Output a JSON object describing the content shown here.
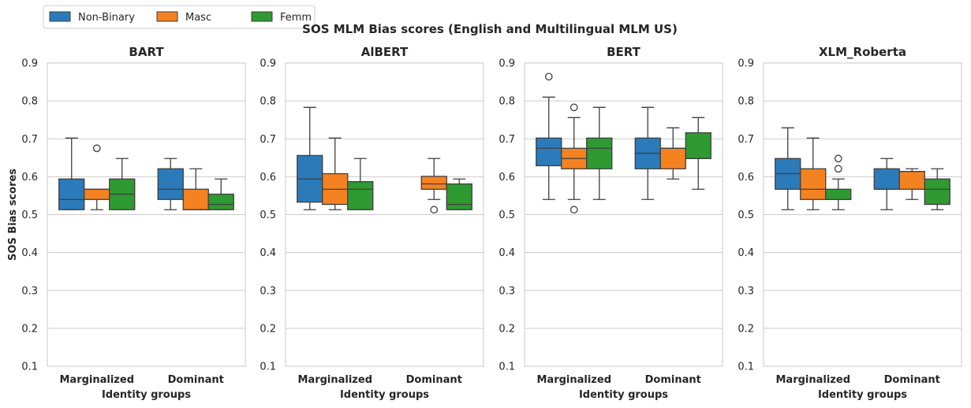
{
  "chart_data": {
    "type": "box",
    "title": "SOS MLM Bias scores (English and Multilingual MLM US)",
    "ylabel": "SOS Bias scores",
    "xlabel": "Identity groups",
    "ylim": [
      0.1,
      0.9
    ],
    "yticks": [
      "0.1",
      "0.2",
      "0.3",
      "0.4",
      "0.5",
      "0.6",
      "0.7",
      "0.8",
      "0.9"
    ],
    "categories": [
      "Marginalized",
      "Dominant"
    ],
    "grid": true,
    "legend": {
      "placement": "top-left",
      "entries": [
        {
          "name": "Non-Binary",
          "color": "#2b7bba"
        },
        {
          "name": "Masc",
          "color": "#f58220"
        },
        {
          "name": "Femm",
          "color": "#2e9a31"
        }
      ]
    },
    "panels": [
      {
        "title": "BART",
        "boxes": [
          {
            "category": "Marginalized",
            "series": "Non-Binary",
            "whislo": 0.513,
            "q1": 0.513,
            "med": 0.54,
            "q3": 0.594,
            "whishi": 0.702,
            "fliers": []
          },
          {
            "category": "Marginalized",
            "series": "Masc",
            "whislo": 0.513,
            "q1": 0.54,
            "med": 0.567,
            "q3": 0.567,
            "whishi": 0.567,
            "fliers": [
              0.675
            ]
          },
          {
            "category": "Marginalized",
            "series": "Femm",
            "whislo": 0.513,
            "q1": 0.513,
            "med": 0.554,
            "q3": 0.594,
            "whishi": 0.648,
            "fliers": []
          },
          {
            "category": "Dominant",
            "series": "Non-Binary",
            "whislo": 0.513,
            "q1": 0.54,
            "med": 0.567,
            "q3": 0.621,
            "whishi": 0.648,
            "fliers": []
          },
          {
            "category": "Dominant",
            "series": "Masc",
            "whislo": 0.513,
            "q1": 0.513,
            "med": 0.513,
            "q3": 0.567,
            "whishi": 0.621,
            "fliers": []
          },
          {
            "category": "Dominant",
            "series": "Femm",
            "whislo": 0.513,
            "q1": 0.513,
            "med": 0.527,
            "q3": 0.554,
            "whishi": 0.594,
            "fliers": []
          }
        ]
      },
      {
        "title": "AlBERT",
        "boxes": [
          {
            "category": "Marginalized",
            "series": "Non-Binary",
            "whislo": 0.513,
            "q1": 0.533,
            "med": 0.594,
            "q3": 0.656,
            "whishi": 0.783,
            "fliers": []
          },
          {
            "category": "Marginalized",
            "series": "Masc",
            "whislo": 0.513,
            "q1": 0.527,
            "med": 0.567,
            "q3": 0.608,
            "whishi": 0.702,
            "fliers": []
          },
          {
            "category": "Marginalized",
            "series": "Femm",
            "whislo": 0.513,
            "q1": 0.513,
            "med": 0.567,
            "q3": 0.587,
            "whishi": 0.648,
            "fliers": []
          },
          {
            "category": "Dominant",
            "series": "Masc",
            "whislo": 0.54,
            "q1": 0.567,
            "med": 0.581,
            "q3": 0.601,
            "whishi": 0.648,
            "fliers": [
              0.513
            ]
          },
          {
            "category": "Dominant",
            "series": "Femm",
            "whislo": 0.513,
            "q1": 0.513,
            "med": 0.527,
            "q3": 0.581,
            "whishi": 0.594,
            "fliers": []
          }
        ]
      },
      {
        "title": "BERT",
        "boxes": [
          {
            "category": "Marginalized",
            "series": "Non-Binary",
            "whislo": 0.54,
            "q1": 0.629,
            "med": 0.675,
            "q3": 0.702,
            "whishi": 0.81,
            "fliers": [
              0.864
            ]
          },
          {
            "category": "Marginalized",
            "series": "Masc",
            "whislo": 0.54,
            "q1": 0.621,
            "med": 0.648,
            "q3": 0.675,
            "whishi": 0.756,
            "fliers": [
              0.783,
              0.513
            ]
          },
          {
            "category": "Marginalized",
            "series": "Femm",
            "whislo": 0.54,
            "q1": 0.621,
            "med": 0.675,
            "q3": 0.702,
            "whishi": 0.783,
            "fliers": []
          },
          {
            "category": "Dominant",
            "series": "Non-Binary",
            "whislo": 0.54,
            "q1": 0.621,
            "med": 0.662,
            "q3": 0.702,
            "whishi": 0.783,
            "fliers": []
          },
          {
            "category": "Dominant",
            "series": "Masc",
            "whislo": 0.594,
            "q1": 0.621,
            "med": 0.675,
            "q3": 0.675,
            "whishi": 0.729,
            "fliers": []
          },
          {
            "category": "Dominant",
            "series": "Femm",
            "whislo": 0.567,
            "q1": 0.648,
            "med": 0.648,
            "q3": 0.716,
            "whishi": 0.756,
            "fliers": []
          }
        ]
      },
      {
        "title": "XLM_Roberta",
        "boxes": [
          {
            "category": "Marginalized",
            "series": "Non-Binary",
            "whislo": 0.513,
            "q1": 0.567,
            "med": 0.608,
            "q3": 0.648,
            "whishi": 0.729,
            "fliers": []
          },
          {
            "category": "Marginalized",
            "series": "Masc",
            "whislo": 0.513,
            "q1": 0.54,
            "med": 0.567,
            "q3": 0.621,
            "whishi": 0.702,
            "fliers": []
          },
          {
            "category": "Marginalized",
            "series": "Femm",
            "whislo": 0.513,
            "q1": 0.54,
            "med": 0.54,
            "q3": 0.567,
            "whishi": 0.594,
            "fliers": [
              0.648,
              0.621
            ]
          },
          {
            "category": "Dominant",
            "series": "Non-Binary",
            "whislo": 0.513,
            "q1": 0.567,
            "med": 0.567,
            "q3": 0.621,
            "whishi": 0.648,
            "fliers": []
          },
          {
            "category": "Dominant",
            "series": "Masc",
            "whislo": 0.54,
            "q1": 0.567,
            "med": 0.614,
            "q3": 0.614,
            "whishi": 0.621,
            "fliers": []
          },
          {
            "category": "Dominant",
            "series": "Femm",
            "whislo": 0.513,
            "q1": 0.527,
            "med": 0.567,
            "q3": 0.594,
            "whishi": 0.621,
            "fliers": []
          }
        ]
      }
    ]
  }
}
